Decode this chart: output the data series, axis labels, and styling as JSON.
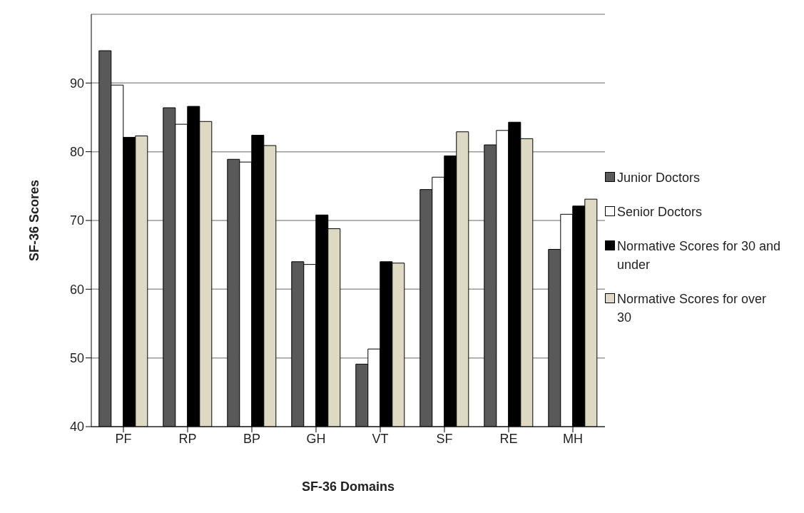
{
  "chart_data": {
    "type": "bar",
    "xlabel": "SF-36 Domains",
    "ylabel": "SF-36 Scores",
    "categories": [
      "PF",
      "RP",
      "BP",
      "GH",
      "VT",
      "SF",
      "RE",
      "MH"
    ],
    "series": [
      {
        "name": "Junior Doctors",
        "color": "#595959",
        "values": [
          94.7,
          86.4,
          78.9,
          64.0,
          49.1,
          74.5,
          81.0,
          65.8
        ]
      },
      {
        "name": "Senior Doctors",
        "color": "#ffffff",
        "values": [
          89.7,
          84.0,
          78.5,
          63.6,
          51.3,
          76.3,
          83.1,
          70.9
        ]
      },
      {
        "name": "Normative Scores for 30 and under",
        "color": "#000000",
        "values": [
          82.1,
          86.6,
          82.4,
          70.8,
          64.0,
          79.4,
          84.3,
          72.1
        ]
      },
      {
        "name": "Normative Scores for over 30",
        "color": "#ddd9c3",
        "values": [
          82.3,
          84.4,
          80.9,
          68.8,
          63.8,
          82.9,
          81.9,
          73.1
        ]
      }
    ],
    "ylim": [
      40,
      100
    ],
    "yticks": [
      40,
      50,
      60,
      70,
      80,
      90
    ],
    "grid": "y",
    "legend": "right"
  }
}
